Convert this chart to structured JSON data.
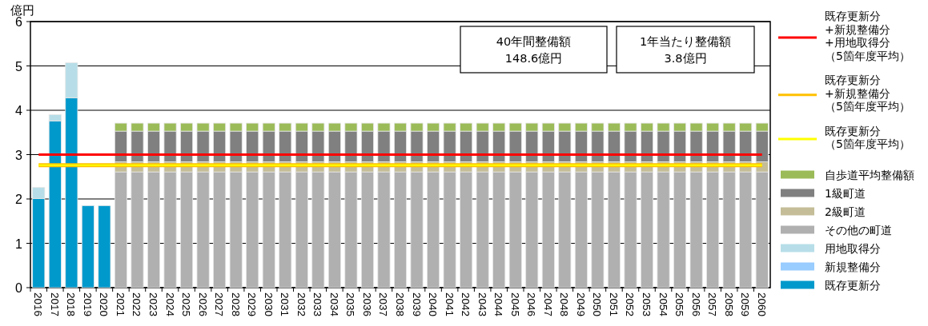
{
  "chart_data": {
    "type": "bar",
    "stacked": true,
    "ylabel": "億円",
    "grid": "y",
    "legend": "right",
    "categories": [
      "2016",
      "2017",
      "2018",
      "2019",
      "2020",
      "2021",
      "2022",
      "2023",
      "2024",
      "2025",
      "2026",
      "2027",
      "2028",
      "2029",
      "2030",
      "2031",
      "2032",
      "2033",
      "2034",
      "2035",
      "2036",
      "2037",
      "2038",
      "2039",
      "2040",
      "2041",
      "2042",
      "2043",
      "2044",
      "2045",
      "2046",
      "2047",
      "2048",
      "2049",
      "2050",
      "2051",
      "2052",
      "2053",
      "2054",
      "2055",
      "2056",
      "2057",
      "2058",
      "2059",
      "2060"
    ],
    "ylim": [
      0,
      6
    ],
    "yticks": [
      0,
      1,
      2,
      3,
      4,
      5,
      6
    ],
    "series": [
      {
        "name": "既存更新分",
        "color": "#0099cc",
        "values": [
          2.01,
          3.76,
          4.28,
          1.85,
          1.85,
          null,
          null,
          null,
          null,
          null,
          null,
          null,
          null,
          null,
          null,
          null,
          null,
          null,
          null,
          null,
          null,
          null,
          null,
          null,
          null,
          null,
          null,
          null,
          null,
          null,
          null,
          null,
          null,
          null,
          null,
          null,
          null,
          null,
          null,
          null,
          null,
          null,
          null,
          null,
          null
        ]
      },
      {
        "name": "新規整備分",
        "color": "#99ccff",
        "values": [
          0,
          0,
          0,
          0,
          0,
          null,
          null,
          null,
          null,
          null,
          null,
          null,
          null,
          null,
          null,
          null,
          null,
          null,
          null,
          null,
          null,
          null,
          null,
          null,
          null,
          null,
          null,
          null,
          null,
          null,
          null,
          null,
          null,
          null,
          null,
          null,
          null,
          null,
          null,
          null,
          null,
          null,
          null,
          null,
          null
        ]
      },
      {
        "name": "用地取得分",
        "color": "#b7dee8",
        "values": [
          0.25,
          0.14,
          0.79,
          0,
          0,
          null,
          null,
          null,
          null,
          null,
          null,
          null,
          null,
          null,
          null,
          null,
          null,
          null,
          null,
          null,
          null,
          null,
          null,
          null,
          null,
          null,
          null,
          null,
          null,
          null,
          null,
          null,
          null,
          null,
          null,
          null,
          null,
          null,
          null,
          null,
          null,
          null,
          null,
          null,
          null
        ]
      },
      {
        "name": "その他の町道",
        "color": "#b0b0b0",
        "values": [
          null,
          null,
          null,
          null,
          null,
          2.61,
          2.61,
          2.61,
          2.61,
          2.61,
          2.61,
          2.61,
          2.61,
          2.61,
          2.61,
          2.61,
          2.61,
          2.61,
          2.61,
          2.61,
          2.61,
          2.61,
          2.61,
          2.61,
          2.61,
          2.61,
          2.61,
          2.61,
          2.61,
          2.61,
          2.61,
          2.61,
          2.61,
          2.61,
          2.61,
          2.61,
          2.61,
          2.61,
          2.61,
          2.61,
          2.61,
          2.61,
          2.61,
          2.61,
          2.61
        ]
      },
      {
        "name": "2級町道",
        "color": "#c4bd97",
        "values": [
          null,
          null,
          null,
          null,
          null,
          0.23,
          0.23,
          0.23,
          0.23,
          0.23,
          0.23,
          0.23,
          0.23,
          0.23,
          0.23,
          0.23,
          0.23,
          0.23,
          0.23,
          0.23,
          0.23,
          0.23,
          0.23,
          0.23,
          0.23,
          0.23,
          0.23,
          0.23,
          0.23,
          0.23,
          0.23,
          0.23,
          0.23,
          0.23,
          0.23,
          0.23,
          0.23,
          0.23,
          0.23,
          0.23,
          0.23,
          0.23,
          0.23,
          0.23,
          0.23
        ]
      },
      {
        "name": "1級町道",
        "color": "#808080",
        "values": [
          null,
          null,
          null,
          null,
          null,
          0.69,
          0.69,
          0.69,
          0.69,
          0.69,
          0.69,
          0.69,
          0.69,
          0.69,
          0.69,
          0.69,
          0.69,
          0.69,
          0.69,
          0.69,
          0.69,
          0.69,
          0.69,
          0.69,
          0.69,
          0.69,
          0.69,
          0.69,
          0.69,
          0.69,
          0.69,
          0.69,
          0.69,
          0.69,
          0.69,
          0.69,
          0.69,
          0.69,
          0.69,
          0.69,
          0.69,
          0.69,
          0.69,
          0.69,
          0.69
        ]
      },
      {
        "name": "自歩道平均整備額",
        "color": "#9bbb59",
        "values": [
          null,
          null,
          null,
          null,
          null,
          0.18,
          0.18,
          0.18,
          0.18,
          0.18,
          0.18,
          0.18,
          0.18,
          0.18,
          0.18,
          0.18,
          0.18,
          0.18,
          0.18,
          0.18,
          0.18,
          0.18,
          0.18,
          0.18,
          0.18,
          0.18,
          0.18,
          0.18,
          0.18,
          0.18,
          0.18,
          0.18,
          0.18,
          0.18,
          0.18,
          0.18,
          0.18,
          0.18,
          0.18,
          0.18,
          0.18,
          0.18,
          0.18,
          0.18,
          0.18
        ]
      }
    ],
    "ref_lines": [
      {
        "axis": "y",
        "value": 3.0,
        "color": "#ff0000",
        "label": "既存更新分+新規整備分+用地取得分（5箇年度平均）"
      },
      {
        "axis": "y",
        "value": 2.76,
        "color": "#ffc000",
        "label": "既存更新分+新規整備分（5箇年度平均）"
      },
      {
        "axis": "y",
        "value": 2.76,
        "color": "#ffff00",
        "label": "既存更新分（5箇年度平均）"
      }
    ],
    "annotations": [
      "40年間整備額\n148.6億円",
      "1年当たり整備額\n3.8億円"
    ]
  }
}
